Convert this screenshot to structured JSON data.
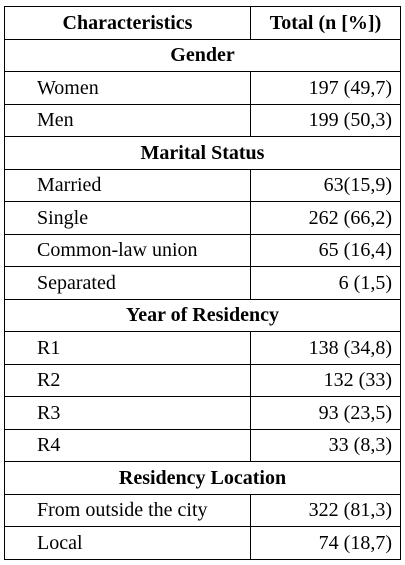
{
  "header": {
    "col1": "Characteristics",
    "col2": "Total (n [%])"
  },
  "sections": [
    {
      "title": "Gender",
      "rows": [
        {
          "label": "Women",
          "value": "197 (49,7)"
        },
        {
          "label": "Men",
          "value": "199 (50,3)"
        }
      ]
    },
    {
      "title": "Marital Status",
      "rows": [
        {
          "label": "Married",
          "value": "63(15,9)"
        },
        {
          "label": "Single",
          "value": "262 (66,2)"
        },
        {
          "label": "Common-law union",
          "value": "65 (16,4)"
        },
        {
          "label": "Separated",
          "value": "6 (1,5)"
        }
      ]
    },
    {
      "title": "Year of Residency",
      "rows": [
        {
          "label": "R1",
          "value": "138 (34,8)"
        },
        {
          "label": "R2",
          "value": "132 (33)"
        },
        {
          "label": "R3",
          "value": "93 (23,5)"
        },
        {
          "label": "R4",
          "value": "33 (8,3)"
        }
      ]
    },
    {
      "title": "Residency Location",
      "rows": [
        {
          "label": "From outside the city",
          "value": "322 (81,3)"
        },
        {
          "label": "Local",
          "value": "74 (18,7)"
        }
      ]
    }
  ]
}
